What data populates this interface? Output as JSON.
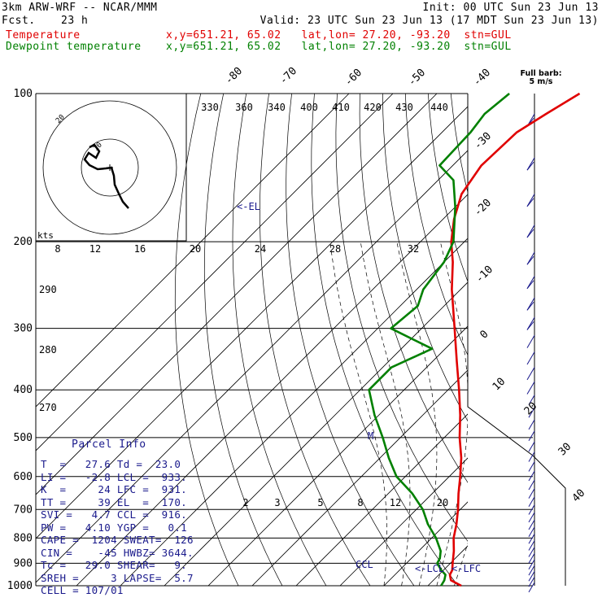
{
  "header": {
    "model": "3km ARW-WRF -- NCAR/MMM",
    "init": "Init: 00 UTC Sun 23 Jun 13",
    "fcst_label": "Fcst.",
    "fcst_value": "23 h",
    "valid": "Valid: 23 UTC Sun 23 Jun 13 (17 MDT Sun 23 Jun 13)",
    "temp_label": "Temperature",
    "temp_info": "x,y=651.21, 65.02   lat,lon= 27.20, -93.20  stn=GUL",
    "dew_label": "Dewpoint temperature",
    "dew_info": "x,y=651.21, 65.02   lat,lon= 27.20, -93.20  stn=GUL"
  },
  "barb_legend": {
    "line1": "Full barb:",
    "line2": "5 m/s"
  },
  "parcel_info": {
    "title": "Parcel Info",
    "rows": [
      "T  =   27.6 Td =  23.0",
      "LI =   -2.8 LCL =  933.",
      "K  =     24 LFC =  931.",
      "TT =     39 EL  =  170.",
      "SVI =   4.7 CCL =  916.",
      "PW =   4.10 YGP =   0.1",
      "CAPE =  1204 SWEAT=  126",
      "CIN =    -45 HWBZ= 3644.",
      "Tc =   29.0 SHEAR=   9.",
      "SREH =     3 LAPSE=  5.7",
      "CELL = 107/01"
    ]
  },
  "chart_data": {
    "type": "line",
    "subtype": "skew-t log-p",
    "pressure_levels": [
      "100",
      "200",
      "300",
      "400",
      "500",
      "600",
      "700",
      "800",
      "900",
      "1000"
    ],
    "isotherm_labels": [
      "-80",
      "-70",
      "-60",
      "-50",
      "-40",
      "-30",
      "-20",
      "-10",
      "0",
      "10",
      "20",
      "30",
      "40"
    ],
    "theta_labels": [
      "330",
      "360",
      "340",
      "400",
      "410",
      "420",
      "430",
      "440"
    ],
    "mixing_ratio_upper": [
      "8",
      "12",
      "16",
      "20",
      "24",
      "28",
      "32"
    ],
    "mixing_ratio_lower": [
      "2",
      "3",
      "5",
      "8",
      "12",
      "20"
    ],
    "dry_adiabat_labels": [
      "290",
      "280",
      "270"
    ],
    "kts_label": "kts",
    "series": [
      {
        "name": "Temperature",
        "color": "#e00000",
        "points": [
          [
            1000,
            27.6
          ],
          [
            975,
            24.0
          ],
          [
            950,
            22.5
          ],
          [
            930,
            22.0
          ],
          [
            900,
            20.5
          ],
          [
            850,
            18.0
          ],
          [
            800,
            15.0
          ],
          [
            750,
            12.5
          ],
          [
            700,
            9.5
          ],
          [
            650,
            6.0
          ],
          [
            600,
            2.5
          ],
          [
            550,
            -1.5
          ],
          [
            500,
            -6.5
          ],
          [
            450,
            -11.5
          ],
          [
            400,
            -17.5
          ],
          [
            350,
            -24.5
          ],
          [
            300,
            -32.5
          ],
          [
            250,
            -42.0
          ],
          [
            220,
            -48.0
          ],
          [
            200,
            -53.0
          ],
          [
            180,
            -57.5
          ],
          [
            160,
            -61.5
          ],
          [
            140,
            -63.5
          ],
          [
            120,
            -63.0
          ],
          [
            110,
            -60.5
          ],
          [
            100,
            -57.5
          ]
        ]
      },
      {
        "name": "Dewpoint temperature",
        "color": "#008000",
        "points": [
          [
            1000,
            23.0
          ],
          [
            975,
            22.5
          ],
          [
            950,
            21.5
          ],
          [
            930,
            19.5
          ],
          [
            900,
            17.0
          ],
          [
            880,
            16.5
          ],
          [
            850,
            15.0
          ],
          [
            800,
            11.0
          ],
          [
            750,
            6.0
          ],
          [
            700,
            1.5
          ],
          [
            650,
            -4.5
          ],
          [
            600,
            -12.0
          ],
          [
            550,
            -18.0
          ],
          [
            500,
            -24.0
          ],
          [
            450,
            -31.0
          ],
          [
            400,
            -38.0
          ],
          [
            360,
            -38.0
          ],
          [
            330,
            -33.0
          ],
          [
            300,
            -47.0
          ],
          [
            270,
            -46.0
          ],
          [
            250,
            -48.5
          ],
          [
            220,
            -50.0
          ],
          [
            200,
            -52.5
          ],
          [
            170,
            -60.0
          ],
          [
            150,
            -66.5
          ],
          [
            140,
            -73.0
          ],
          [
            120,
            -73.5
          ],
          [
            110,
            -74.5
          ],
          [
            100,
            -73.5
          ]
        ]
      }
    ],
    "annotations": [
      "<-EL",
      "<-LCL",
      "<-LFC",
      "CCL",
      "M"
    ],
    "hodograph": {
      "speed_labels": [
        "10",
        "20"
      ],
      "points": [
        [
          1,
          0
        ],
        [
          2,
          3
        ],
        [
          3,
          6
        ],
        [
          4,
          9
        ],
        [
          5,
          12
        ],
        [
          6,
          14
        ],
        [
          7,
          17
        ],
        [
          8,
          20
        ]
      ]
    },
    "wind_barbs": "full barb 5 m/s"
  },
  "colors": {
    "temperature": "#e00000",
    "dewpoint": "#008000",
    "isobar": "#000000",
    "text_blue": "#1a1a8c"
  }
}
